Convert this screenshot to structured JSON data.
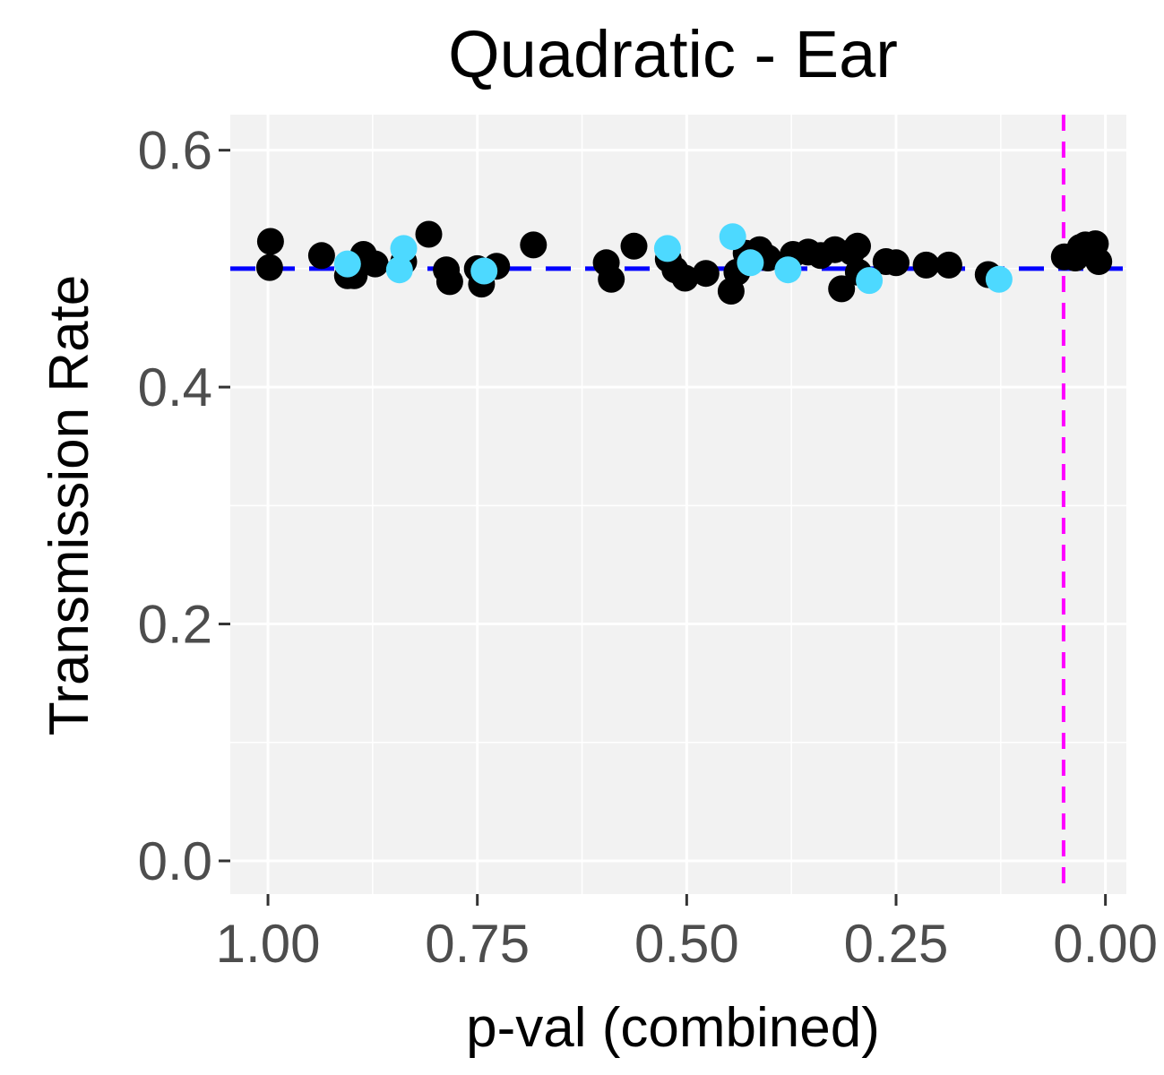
{
  "chart_data": {
    "type": "scatter",
    "title": "Quadratic - Ear",
    "xlabel": "p-val (combined)",
    "ylabel": "Transmission Rate",
    "x_reversed": true,
    "xlim": [
      1.045,
      -0.025
    ],
    "ylim": [
      -0.028,
      0.63
    ],
    "x_ticks": [
      1.0,
      0.75,
      0.5,
      0.25,
      0.0
    ],
    "x_tick_labels": [
      "1.00",
      "0.75",
      "0.50",
      "0.25",
      "0.00"
    ],
    "y_ticks": [
      0.0,
      0.2,
      0.4,
      0.6
    ],
    "y_tick_labels": [
      "0.0",
      "0.2",
      "0.4",
      "0.6"
    ],
    "grid": true,
    "background": "#f2f2f2",
    "reference_lines": [
      {
        "orientation": "horizontal",
        "value": 0.5,
        "color": "#0000ff",
        "style": "dashed"
      },
      {
        "orientation": "vertical",
        "value": 0.05,
        "color": "#ff00ff",
        "style": "dashed"
      }
    ],
    "series": [
      {
        "color": "#000000",
        "points": [
          [
            0.997,
            0.523
          ],
          [
            0.998,
            0.501
          ],
          [
            0.936,
            0.511
          ],
          [
            0.905,
            0.494
          ],
          [
            0.897,
            0.494
          ],
          [
            0.886,
            0.512
          ],
          [
            0.872,
            0.504
          ],
          [
            0.838,
            0.506
          ],
          [
            0.808,
            0.529
          ],
          [
            0.787,
            0.499
          ],
          [
            0.783,
            0.489
          ],
          [
            0.75,
            0.5
          ],
          [
            0.745,
            0.487
          ],
          [
            0.727,
            0.502
          ],
          [
            0.683,
            0.52
          ],
          [
            0.596,
            0.505
          ],
          [
            0.59,
            0.491
          ],
          [
            0.563,
            0.519
          ],
          [
            0.522,
            0.508
          ],
          [
            0.514,
            0.499
          ],
          [
            0.502,
            0.492
          ],
          [
            0.477,
            0.496
          ],
          [
            0.447,
            0.481
          ],
          [
            0.44,
            0.497
          ],
          [
            0.429,
            0.513
          ],
          [
            0.413,
            0.516
          ],
          [
            0.403,
            0.509
          ],
          [
            0.373,
            0.512
          ],
          [
            0.355,
            0.514
          ],
          [
            0.34,
            0.511
          ],
          [
            0.323,
            0.516
          ],
          [
            0.315,
            0.483
          ],
          [
            0.303,
            0.514
          ],
          [
            0.296,
            0.519
          ],
          [
            0.295,
            0.497
          ],
          [
            0.262,
            0.506
          ],
          [
            0.25,
            0.505
          ],
          [
            0.214,
            0.503
          ],
          [
            0.187,
            0.503
          ],
          [
            0.14,
            0.495
          ],
          [
            0.049,
            0.51
          ],
          [
            0.036,
            0.509
          ],
          [
            0.03,
            0.518
          ],
          [
            0.024,
            0.52
          ],
          [
            0.012,
            0.521
          ],
          [
            0.008,
            0.506
          ]
        ]
      },
      {
        "color": "#4dd9ff",
        "points": [
          [
            0.905,
            0.504
          ],
          [
            0.843,
            0.499
          ],
          [
            0.838,
            0.517
          ],
          [
            0.742,
            0.498
          ],
          [
            0.523,
            0.517
          ],
          [
            0.445,
            0.527
          ],
          [
            0.424,
            0.505
          ],
          [
            0.379,
            0.499
          ],
          [
            0.282,
            0.49
          ],
          [
            0.127,
            0.491
          ]
        ]
      }
    ]
  }
}
